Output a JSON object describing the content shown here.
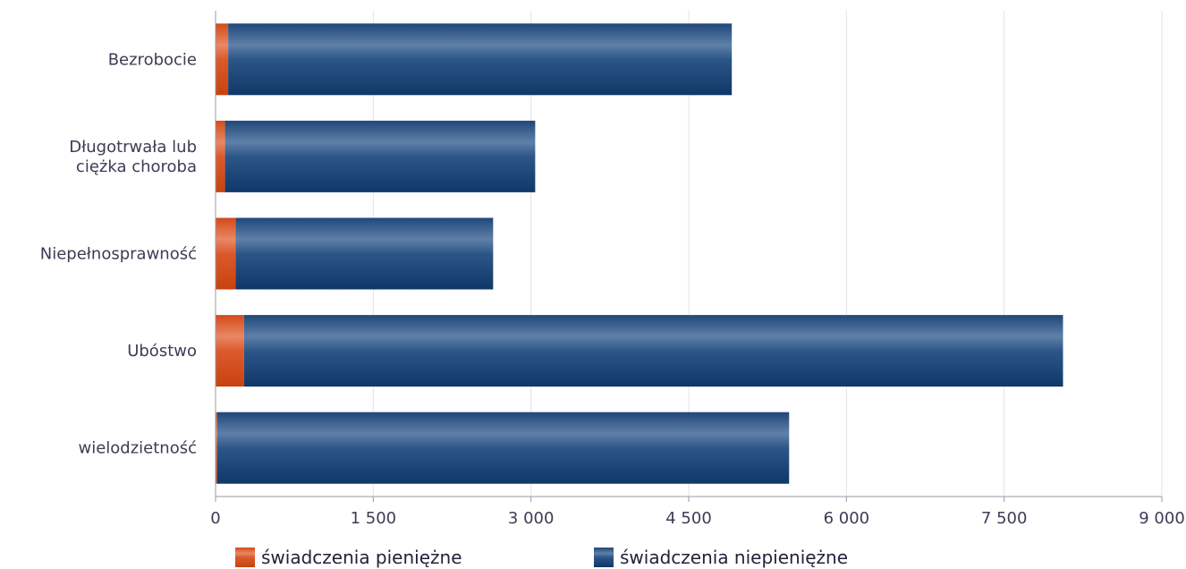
{
  "chart_data": {
    "type": "bar",
    "orientation": "horizontal",
    "stacked": true,
    "categories": [
      [
        "Bezrobocie"
      ],
      [
        "Długotrwała lub",
        "ciężka choroba"
      ],
      [
        "Niepełnosprawność"
      ],
      [
        "Ubóstwo"
      ],
      [
        "wielodzietność"
      ]
    ],
    "series": [
      {
        "name": "świadczenia pieniężne",
        "color": "#d94e1f",
        "values": [
          120,
          90,
          190,
          270,
          15
        ]
      },
      {
        "name": "świadczenia niepieniężne",
        "color": "#1e4a7a",
        "values": [
          4790,
          2950,
          2450,
          7790,
          5440
        ]
      }
    ],
    "xlim": [
      0,
      9000
    ],
    "xticks": [
      0,
      1500,
      3000,
      4500,
      6000,
      7500,
      9000
    ],
    "xtick_labels": [
      "0",
      "1 500",
      "3 000",
      "4 500",
      "6 000",
      "7 500",
      "9 000"
    ],
    "grid": "vertical",
    "legend_position": "bottom"
  }
}
